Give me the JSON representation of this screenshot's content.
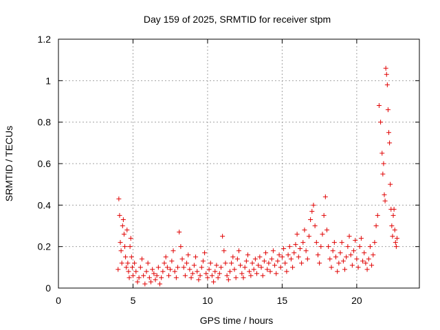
{
  "chart_data": {
    "type": "scatter",
    "title": "Day 159 of 2025, SRMTID for receiver stpm",
    "xlabel": "GPS time / hours",
    "ylabel": "SRMTID / TECUs",
    "xlim": [
      0,
      24.2
    ],
    "ylim": [
      0,
      1.2
    ],
    "xticks": [
      0,
      5,
      10,
      15,
      20
    ],
    "yticks": [
      0,
      0.2,
      0.4,
      0.6,
      0.8,
      1,
      1.2
    ],
    "ytick_labels": [
      "0",
      "0.2",
      "0.4",
      "0.6",
      "0.8",
      "1",
      "1.2"
    ],
    "grid": true,
    "marker": "+",
    "color": "#e00000",
    "series": [
      {
        "name": "SRMTID",
        "x": [
          4.0,
          4.05,
          4.1,
          4.15,
          4.2,
          4.25,
          4.3,
          4.35,
          4.4,
          4.45,
          4.5,
          4.55,
          4.6,
          4.65,
          4.7,
          4.75,
          4.8,
          4.85,
          4.9,
          4.95,
          5.0,
          5.1,
          5.2,
          5.3,
          5.4,
          5.5,
          5.6,
          5.7,
          5.8,
          5.9,
          6.0,
          6.1,
          6.2,
          6.3,
          6.4,
          6.5,
          6.6,
          6.7,
          6.8,
          6.9,
          7.0,
          7.1,
          7.2,
          7.3,
          7.4,
          7.5,
          7.6,
          7.7,
          7.8,
          7.9,
          8.0,
          8.1,
          8.2,
          8.3,
          8.4,
          8.5,
          8.6,
          8.7,
          8.8,
          8.9,
          9.0,
          9.1,
          9.2,
          9.3,
          9.4,
          9.5,
          9.6,
          9.7,
          9.8,
          9.9,
          10.0,
          10.1,
          10.2,
          10.3,
          10.4,
          10.5,
          10.6,
          10.7,
          10.8,
          10.9,
          11.0,
          11.1,
          11.2,
          11.3,
          11.4,
          11.5,
          11.6,
          11.7,
          11.8,
          11.9,
          12.0,
          12.1,
          12.2,
          12.3,
          12.4,
          12.5,
          12.6,
          12.7,
          12.8,
          12.9,
          13.0,
          13.1,
          13.2,
          13.3,
          13.4,
          13.5,
          13.6,
          13.7,
          13.8,
          13.9,
          14.0,
          14.1,
          14.2,
          14.3,
          14.4,
          14.5,
          14.6,
          14.7,
          14.8,
          14.9,
          15.0,
          15.1,
          15.2,
          15.3,
          15.4,
          15.5,
          15.6,
          15.7,
          15.8,
          15.9,
          16.0,
          16.1,
          16.2,
          16.3,
          16.4,
          16.5,
          16.6,
          16.7,
          16.8,
          16.9,
          17.0,
          17.1,
          17.2,
          17.3,
          17.4,
          17.5,
          17.6,
          17.7,
          17.8,
          17.9,
          18.0,
          18.1,
          18.2,
          18.3,
          18.4,
          18.5,
          18.6,
          18.7,
          18.8,
          18.9,
          19.0,
          19.1,
          19.2,
          19.3,
          19.4,
          19.5,
          19.6,
          19.7,
          19.8,
          19.9,
          20.0,
          20.1,
          20.2,
          20.3,
          20.4,
          20.5,
          20.6,
          20.7,
          20.8,
          20.9,
          21.0,
          21.1,
          21.2,
          21.3,
          21.4,
          21.5,
          21.6,
          21.7,
          21.75,
          21.8,
          21.85,
          21.9,
          21.95,
          22.0,
          22.05,
          22.1,
          22.15,
          22.2,
          22.25,
          22.3,
          22.35,
          22.4,
          22.45,
          22.5,
          22.55,
          22.6,
          22.65,
          22.7
        ],
        "y": [
          0.09,
          0.43,
          0.35,
          0.22,
          0.18,
          0.12,
          0.3,
          0.33,
          0.26,
          0.2,
          0.15,
          0.1,
          0.28,
          0.12,
          0.08,
          0.05,
          0.2,
          0.24,
          0.15,
          0.1,
          0.06,
          0.12,
          0.08,
          0.03,
          0.05,
          0.1,
          0.14,
          0.06,
          0.02,
          0.08,
          0.12,
          0.05,
          0.03,
          0.09,
          0.07,
          0.04,
          0.06,
          0.1,
          0.02,
          0.05,
          0.08,
          0.12,
          0.15,
          0.1,
          0.06,
          0.09,
          0.13,
          0.18,
          0.08,
          0.05,
          0.1,
          0.27,
          0.2,
          0.14,
          0.1,
          0.06,
          0.12,
          0.16,
          0.09,
          0.05,
          0.07,
          0.11,
          0.15,
          0.08,
          0.04,
          0.06,
          0.1,
          0.13,
          0.17,
          0.07,
          0.05,
          0.09,
          0.12,
          0.06,
          0.03,
          0.08,
          0.11,
          0.05,
          0.07,
          0.1,
          0.25,
          0.18,
          0.12,
          0.06,
          0.04,
          0.08,
          0.12,
          0.15,
          0.09,
          0.05,
          0.14,
          0.18,
          0.11,
          0.07,
          0.05,
          0.1,
          0.13,
          0.16,
          0.08,
          0.06,
          0.12,
          0.09,
          0.14,
          0.07,
          0.11,
          0.15,
          0.1,
          0.06,
          0.13,
          0.17,
          0.09,
          0.12,
          0.08,
          0.14,
          0.18,
          0.11,
          0.07,
          0.13,
          0.16,
          0.1,
          0.15,
          0.19,
          0.12,
          0.08,
          0.16,
          0.2,
          0.14,
          0.1,
          0.17,
          0.21,
          0.26,
          0.15,
          0.19,
          0.12,
          0.22,
          0.28,
          0.18,
          0.14,
          0.25,
          0.33,
          0.37,
          0.4,
          0.3,
          0.22,
          0.16,
          0.12,
          0.2,
          0.26,
          0.35,
          0.44,
          0.28,
          0.2,
          0.14,
          0.1,
          0.18,
          0.22,
          0.15,
          0.08,
          0.12,
          0.17,
          0.22,
          0.13,
          0.09,
          0.15,
          0.2,
          0.25,
          0.16,
          0.11,
          0.18,
          0.23,
          0.14,
          0.1,
          0.2,
          0.24,
          0.13,
          0.17,
          0.12,
          0.09,
          0.14,
          0.2,
          0.11,
          0.16,
          0.22,
          0.3,
          0.35,
          0.88,
          0.8,
          0.65,
          0.55,
          0.6,
          0.45,
          0.42,
          1.06,
          1.03,
          0.98,
          0.86,
          0.75,
          0.7,
          0.5,
          0.38,
          0.3,
          0.25,
          0.35,
          0.38,
          0.28,
          0.22,
          0.2,
          0.24
        ]
      }
    ]
  }
}
